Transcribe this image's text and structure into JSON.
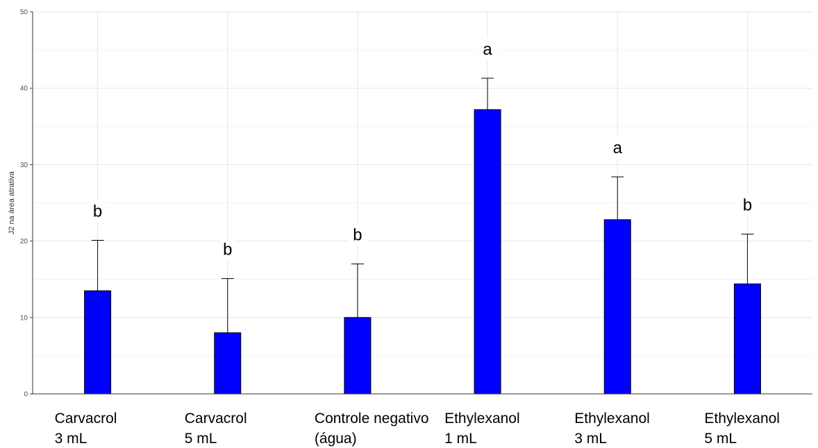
{
  "chart_data": {
    "type": "bar",
    "ylabel": "J2 na área atrativa",
    "ylim": [
      0,
      50
    ],
    "yticks": [
      0,
      10,
      20,
      30,
      40,
      50
    ],
    "grid": true,
    "bar_color": "#0000ff",
    "categories": [
      [
        "Carvacrol",
        "3 mL"
      ],
      [
        "Carvacrol",
        "5 mL"
      ],
      [
        "Controle negativo",
        "(água)"
      ],
      [
        "Ethylexanol",
        "1 mL"
      ],
      [
        "Ethylexanol",
        "3 mL"
      ],
      [
        "Ethylexanol",
        "5 mL"
      ]
    ],
    "values": [
      13.5,
      8.0,
      10.0,
      37.2,
      22.8,
      14.4
    ],
    "error_upper": [
      20.1,
      15.1,
      17.0,
      41.3,
      28.4,
      20.9
    ],
    "significance": [
      "b",
      "b",
      "b",
      "a",
      "a",
      "b"
    ]
  }
}
